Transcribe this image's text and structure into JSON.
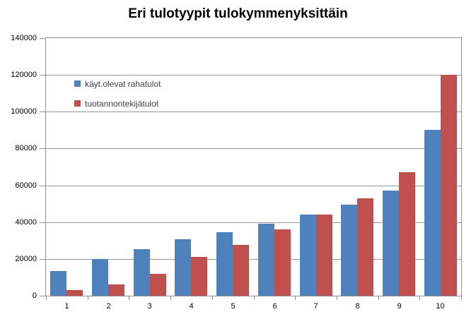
{
  "chart_data": {
    "type": "bar",
    "title": "Eri tulotyypit tulokymmenyksittäin",
    "categories": [
      "1",
      "2",
      "3",
      "4",
      "5",
      "6",
      "7",
      "8",
      "9",
      "10"
    ],
    "series": [
      {
        "name": "käyt.olevat rahatulot",
        "color": "#4F81BD",
        "values": [
          13500,
          20000,
          25500,
          30500,
          34500,
          39000,
          44000,
          49500,
          57000,
          90000
        ]
      },
      {
        "name": "tuotannontekijätulot",
        "color": "#C0504D",
        "values": [
          3000,
          6000,
          12000,
          21000,
          27500,
          36000,
          44000,
          53000,
          67000,
          120000
        ]
      }
    ],
    "xlabel": "",
    "ylabel": "",
    "ylim": [
      0,
      140000
    ],
    "ytick_step": 20000,
    "ytick_labels": [
      "0",
      "20000",
      "40000",
      "60000",
      "80000",
      "100000",
      "120000",
      "140000"
    ],
    "grid": true,
    "legend_position": "top-left-inside"
  },
  "colors": {
    "series_blue": "#4F81BD",
    "series_red": "#C0504D",
    "gridline": "#969696",
    "axis": "#8e8e8e",
    "text": "#000000",
    "background": "#ffffff"
  }
}
